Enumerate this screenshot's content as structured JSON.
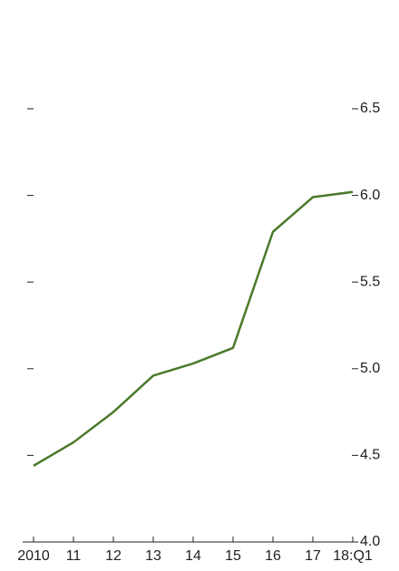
{
  "chart_data": {
    "type": "line",
    "categories": [
      "2010",
      "11",
      "12",
      "13",
      "14",
      "15",
      "16",
      "17",
      "18:Q1"
    ],
    "series": [
      {
        "color": "#4b7a2b",
        "values": [
          4.44,
          4.575,
          4.75,
          4.96,
          5.03,
          5.12,
          5.79,
          5.99,
          6.02
        ]
      }
    ],
    "ylim": [
      4.0,
      6.5
    ],
    "yticks": [
      {
        "value": 4,
        "label": "4.0"
      },
      4.5,
      {
        "value": 5,
        "label": "5.0"
      },
      5.5,
      {
        "value": 6,
        "label": "6.0"
      },
      6.5
    ]
  }
}
